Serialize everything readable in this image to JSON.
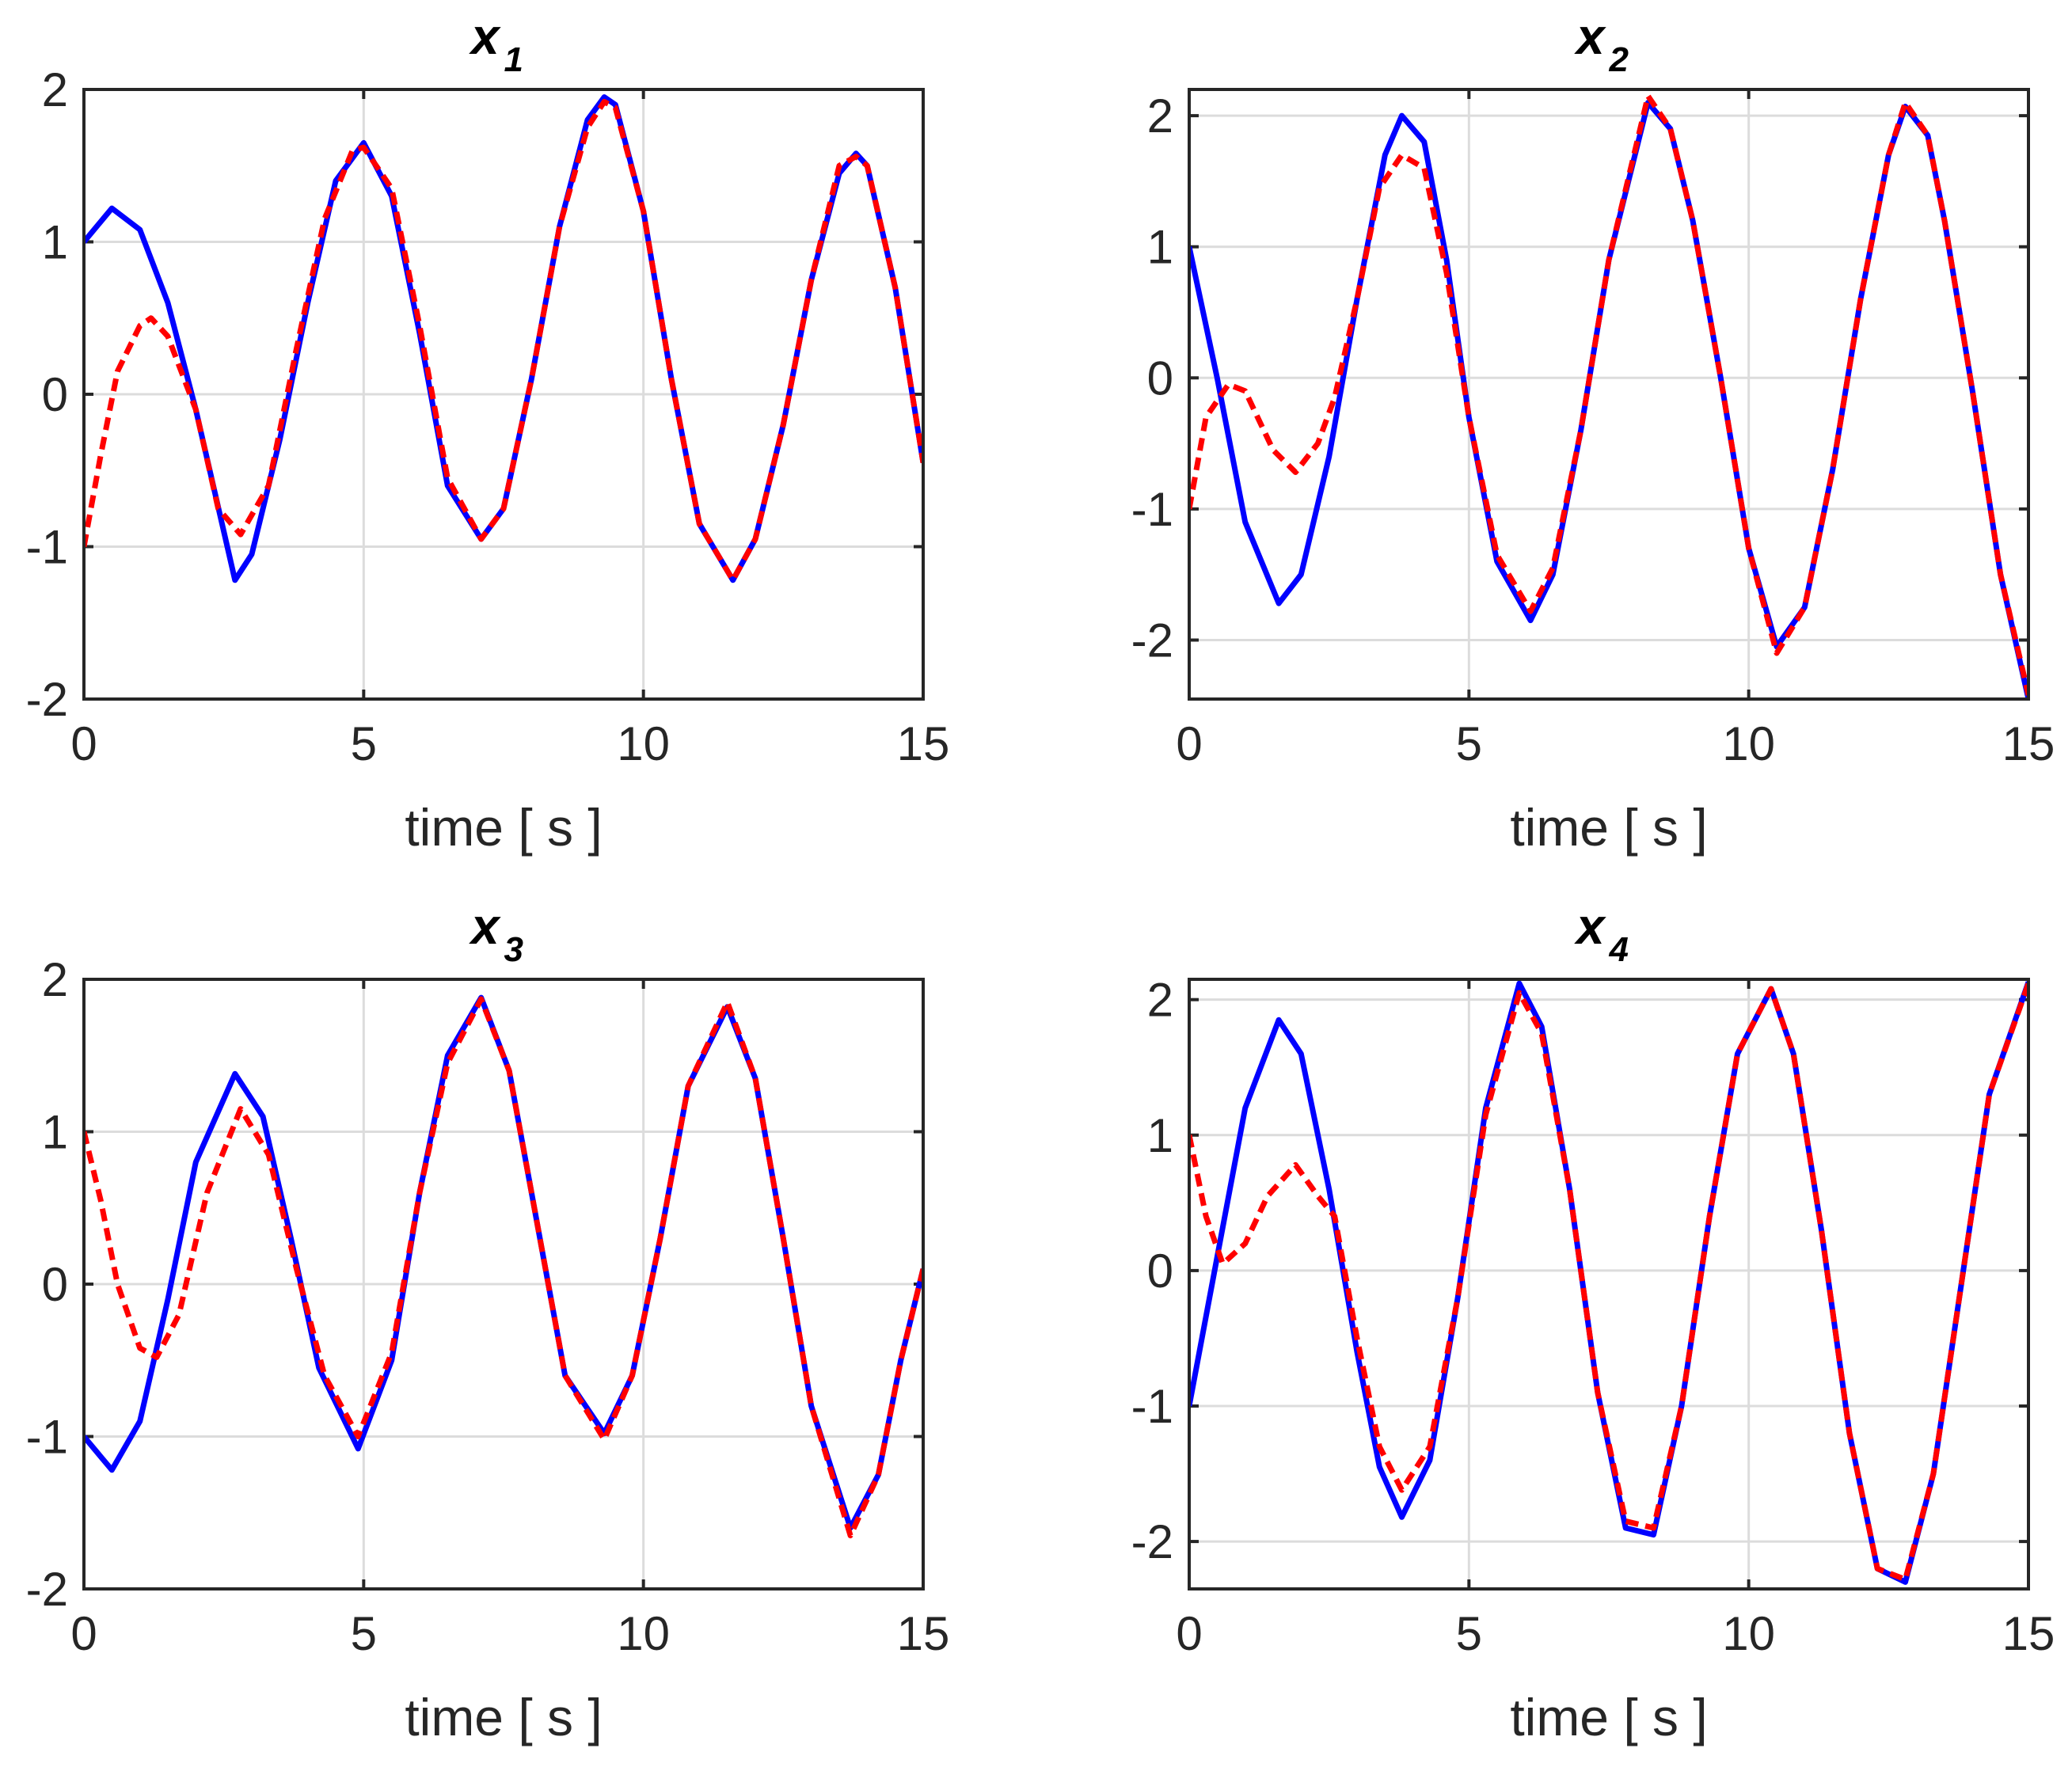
{
  "chart_data": [
    {
      "type": "line",
      "title": "x",
      "title_subscript": "1",
      "xlabel": "time [ s ]",
      "xlim": [
        0,
        15
      ],
      "ylim": [
        -2,
        2
      ],
      "xticks": [
        "0",
        "5",
        "10",
        "15"
      ],
      "yticks": [
        "2",
        "1",
        "0",
        "-1",
        "-2"
      ],
      "grid": true,
      "series": [
        {
          "style": "solid",
          "color": "#0000ff",
          "x": [
            0,
            0.5,
            1,
            1.5,
            2,
            2.7,
            3,
            3.5,
            4,
            4.5,
            5,
            5.5,
            6,
            6.5,
            7.1,
            7.5,
            8,
            8.5,
            9,
            9.3,
            9.5,
            10,
            10.5,
            11,
            11.6,
            12,
            12.5,
            13,
            13.5,
            13.8,
            14,
            14.5,
            15
          ],
          "y": [
            1.0,
            1.22,
            1.08,
            0.6,
            -0.1,
            -1.22,
            -1.05,
            -0.3,
            0.6,
            1.4,
            1.65,
            1.3,
            0.4,
            -0.6,
            -0.95,
            -0.75,
            0.1,
            1.1,
            1.8,
            1.95,
            1.9,
            1.2,
            0.1,
            -0.85,
            -1.22,
            -0.95,
            -0.2,
            0.75,
            1.45,
            1.58,
            1.5,
            0.7,
            -0.45
          ]
        },
        {
          "style": "dashed",
          "color": "#ff0000",
          "x": [
            0,
            0.3,
            0.6,
            1,
            1.2,
            1.5,
            2,
            2.4,
            2.8,
            3.3,
            3.8,
            4.3,
            4.8,
            5,
            5.5,
            6,
            6.5,
            7.1,
            7.5,
            8,
            8.5,
            9,
            9.3,
            9.5,
            10,
            10.5,
            11,
            11.6,
            12,
            12.5,
            13,
            13.5,
            13.8,
            14,
            14.5,
            15
          ],
          "y": [
            -1.0,
            -0.4,
            0.15,
            0.45,
            0.5,
            0.38,
            -0.1,
            -0.75,
            -0.92,
            -0.6,
            0.3,
            1.15,
            1.6,
            1.62,
            1.35,
            0.45,
            -0.55,
            -0.95,
            -0.75,
            0.1,
            1.1,
            1.75,
            1.92,
            1.88,
            1.2,
            0.1,
            -0.85,
            -1.22,
            -0.95,
            -0.2,
            0.75,
            1.5,
            1.56,
            1.5,
            0.7,
            -0.45
          ]
        }
      ]
    },
    {
      "type": "line",
      "title": "x",
      "title_subscript": "2",
      "xlabel": "time [ s ]",
      "xlim": [
        0,
        15
      ],
      "ylim": [
        -2.45,
        2.2
      ],
      "xticks": [
        "0",
        "5",
        "10",
        "15"
      ],
      "yticks": [
        "2",
        "1",
        "0",
        "-1",
        "-2"
      ],
      "grid": true,
      "series": [
        {
          "style": "solid",
          "color": "#0000ff",
          "x": [
            0,
            0.5,
            1,
            1.6,
            2,
            2.5,
            3,
            3.5,
            3.8,
            4.2,
            4.6,
            5,
            5.5,
            6.1,
            6.5,
            7,
            7.5,
            8.2,
            8.6,
            9,
            9.5,
            10,
            10.5,
            11,
            11.5,
            12,
            12.5,
            12.8,
            13.2,
            13.5,
            14,
            14.5,
            15
          ],
          "y": [
            1.0,
            0.0,
            -1.1,
            -1.72,
            -1.5,
            -0.6,
            0.6,
            1.7,
            2.0,
            1.8,
            0.9,
            -0.3,
            -1.4,
            -1.85,
            -1.5,
            -0.4,
            0.9,
            2.1,
            1.9,
            1.2,
            0.0,
            -1.3,
            -2.05,
            -1.75,
            -0.7,
            0.6,
            1.7,
            2.07,
            1.85,
            1.2,
            -0.1,
            -1.5,
            -2.45
          ]
        },
        {
          "style": "dashed",
          "color": "#ff0000",
          "x": [
            0,
            0.3,
            0.7,
            1,
            1.5,
            1.9,
            2.3,
            2.6,
            3,
            3.4,
            3.8,
            4.2,
            4.6,
            5,
            5.5,
            6.1,
            6.5,
            7,
            7.5,
            8.2,
            8.6,
            9,
            9.5,
            10,
            10.5,
            11,
            11.5,
            12,
            12.5,
            12.8,
            13.2,
            13.5,
            14,
            14.5,
            15
          ],
          "y": [
            -1.0,
            -0.3,
            -0.05,
            -0.1,
            -0.55,
            -0.72,
            -0.5,
            -0.15,
            0.6,
            1.45,
            1.7,
            1.6,
            0.8,
            -0.3,
            -1.35,
            -1.78,
            -1.45,
            -0.4,
            0.9,
            2.15,
            1.9,
            1.2,
            0.0,
            -1.3,
            -2.1,
            -1.75,
            -0.7,
            0.6,
            1.7,
            2.1,
            1.85,
            1.2,
            -0.1,
            -1.5,
            -2.42
          ]
        }
      ]
    },
    {
      "type": "line",
      "title": "x",
      "title_subscript": "3",
      "xlabel": "time [ s ]",
      "xlim": [
        0,
        15
      ],
      "ylim": [
        -2,
        2
      ],
      "xticks": [
        "0",
        "5",
        "10",
        "15"
      ],
      "yticks": [
        "2",
        "1",
        "0",
        "-1",
        "-2"
      ],
      "grid": true,
      "series": [
        {
          "style": "solid",
          "color": "#0000ff",
          "x": [
            0,
            0.5,
            1,
            1.5,
            2,
            2.7,
            3.2,
            3.7,
            4.2,
            4.9,
            5.5,
            6,
            6.5,
            7.1,
            7.6,
            8.1,
            8.6,
            9.3,
            9.8,
            10.3,
            10.8,
            11.5,
            12,
            12.5,
            13,
            13.7,
            14.2,
            14.6,
            15
          ],
          "y": [
            -1.0,
            -1.22,
            -0.9,
            -0.1,
            0.8,
            1.38,
            1.1,
            0.3,
            -0.55,
            -1.08,
            -0.5,
            0.6,
            1.5,
            1.88,
            1.4,
            0.4,
            -0.6,
            -0.98,
            -0.6,
            0.3,
            1.3,
            1.82,
            1.35,
            0.3,
            -0.8,
            -1.6,
            -1.25,
            -0.5,
            0.1
          ]
        },
        {
          "style": "dashed",
          "color": "#ff0000",
          "x": [
            0,
            0.3,
            0.6,
            1,
            1.3,
            1.7,
            2.2,
            2.8,
            3.3,
            3.8,
            4.3,
            4.9,
            5.5,
            6,
            6.5,
            7.1,
            7.6,
            8.1,
            8.6,
            9.3,
            9.8,
            10.3,
            10.8,
            11.5,
            12,
            12.5,
            13,
            13.7,
            14.2,
            14.6,
            15
          ],
          "y": [
            1.0,
            0.55,
            0.0,
            -0.42,
            -0.48,
            -0.2,
            0.6,
            1.15,
            0.85,
            0.1,
            -0.6,
            -1.0,
            -0.45,
            0.6,
            1.45,
            1.87,
            1.4,
            0.4,
            -0.6,
            -1.02,
            -0.6,
            0.3,
            1.3,
            1.85,
            1.35,
            0.3,
            -0.8,
            -1.65,
            -1.25,
            -0.5,
            0.1
          ]
        }
      ]
    },
    {
      "type": "line",
      "title": "x",
      "title_subscript": "4",
      "xlabel": "time [ s ]",
      "xlim": [
        0,
        15
      ],
      "ylim": [
        -2.35,
        2.15
      ],
      "xticks": [
        "0",
        "5",
        "10",
        "15"
      ],
      "yticks": [
        "2",
        "1",
        "0",
        "-1",
        "-2"
      ],
      "grid": true,
      "series": [
        {
          "style": "solid",
          "color": "#0000ff",
          "x": [
            0,
            0.5,
            1,
            1.6,
            2,
            2.5,
            3,
            3.4,
            3.8,
            4.3,
            4.8,
            5.3,
            5.9,
            6.3,
            6.8,
            7.3,
            7.8,
            8.3,
            8.8,
            9.3,
            9.8,
            10.4,
            10.8,
            11.3,
            11.8,
            12.3,
            12.8,
            13.3,
            13.8,
            14.3,
            15
          ],
          "y": [
            -1.0,
            0.1,
            1.2,
            1.85,
            1.6,
            0.6,
            -0.6,
            -1.45,
            -1.82,
            -1.4,
            -0.2,
            1.2,
            2.12,
            1.8,
            0.6,
            -0.9,
            -1.9,
            -1.95,
            -1.0,
            0.4,
            1.6,
            2.08,
            1.6,
            0.3,
            -1.2,
            -2.2,
            -2.3,
            -1.5,
            -0.1,
            1.3,
            2.13
          ]
        },
        {
          "style": "dashed",
          "color": "#ff0000",
          "x": [
            0,
            0.3,
            0.6,
            1,
            1.4,
            1.9,
            2.3,
            2.6,
            3,
            3.4,
            3.8,
            4.3,
            4.8,
            5.3,
            5.9,
            6.3,
            6.8,
            7.3,
            7.8,
            8.3,
            8.8,
            9.3,
            9.8,
            10.4,
            10.8,
            11.3,
            11.8,
            12.3,
            12.8,
            13.3,
            13.8,
            14.3,
            15
          ],
          "y": [
            1.0,
            0.4,
            0.05,
            0.2,
            0.55,
            0.78,
            0.55,
            0.4,
            -0.5,
            -1.3,
            -1.62,
            -1.3,
            -0.2,
            1.15,
            2.05,
            1.75,
            0.6,
            -0.9,
            -1.85,
            -1.9,
            -1.0,
            0.4,
            1.6,
            2.08,
            1.6,
            0.3,
            -1.2,
            -2.2,
            -2.28,
            -1.5,
            -0.1,
            1.3,
            2.12
          ]
        }
      ]
    }
  ]
}
